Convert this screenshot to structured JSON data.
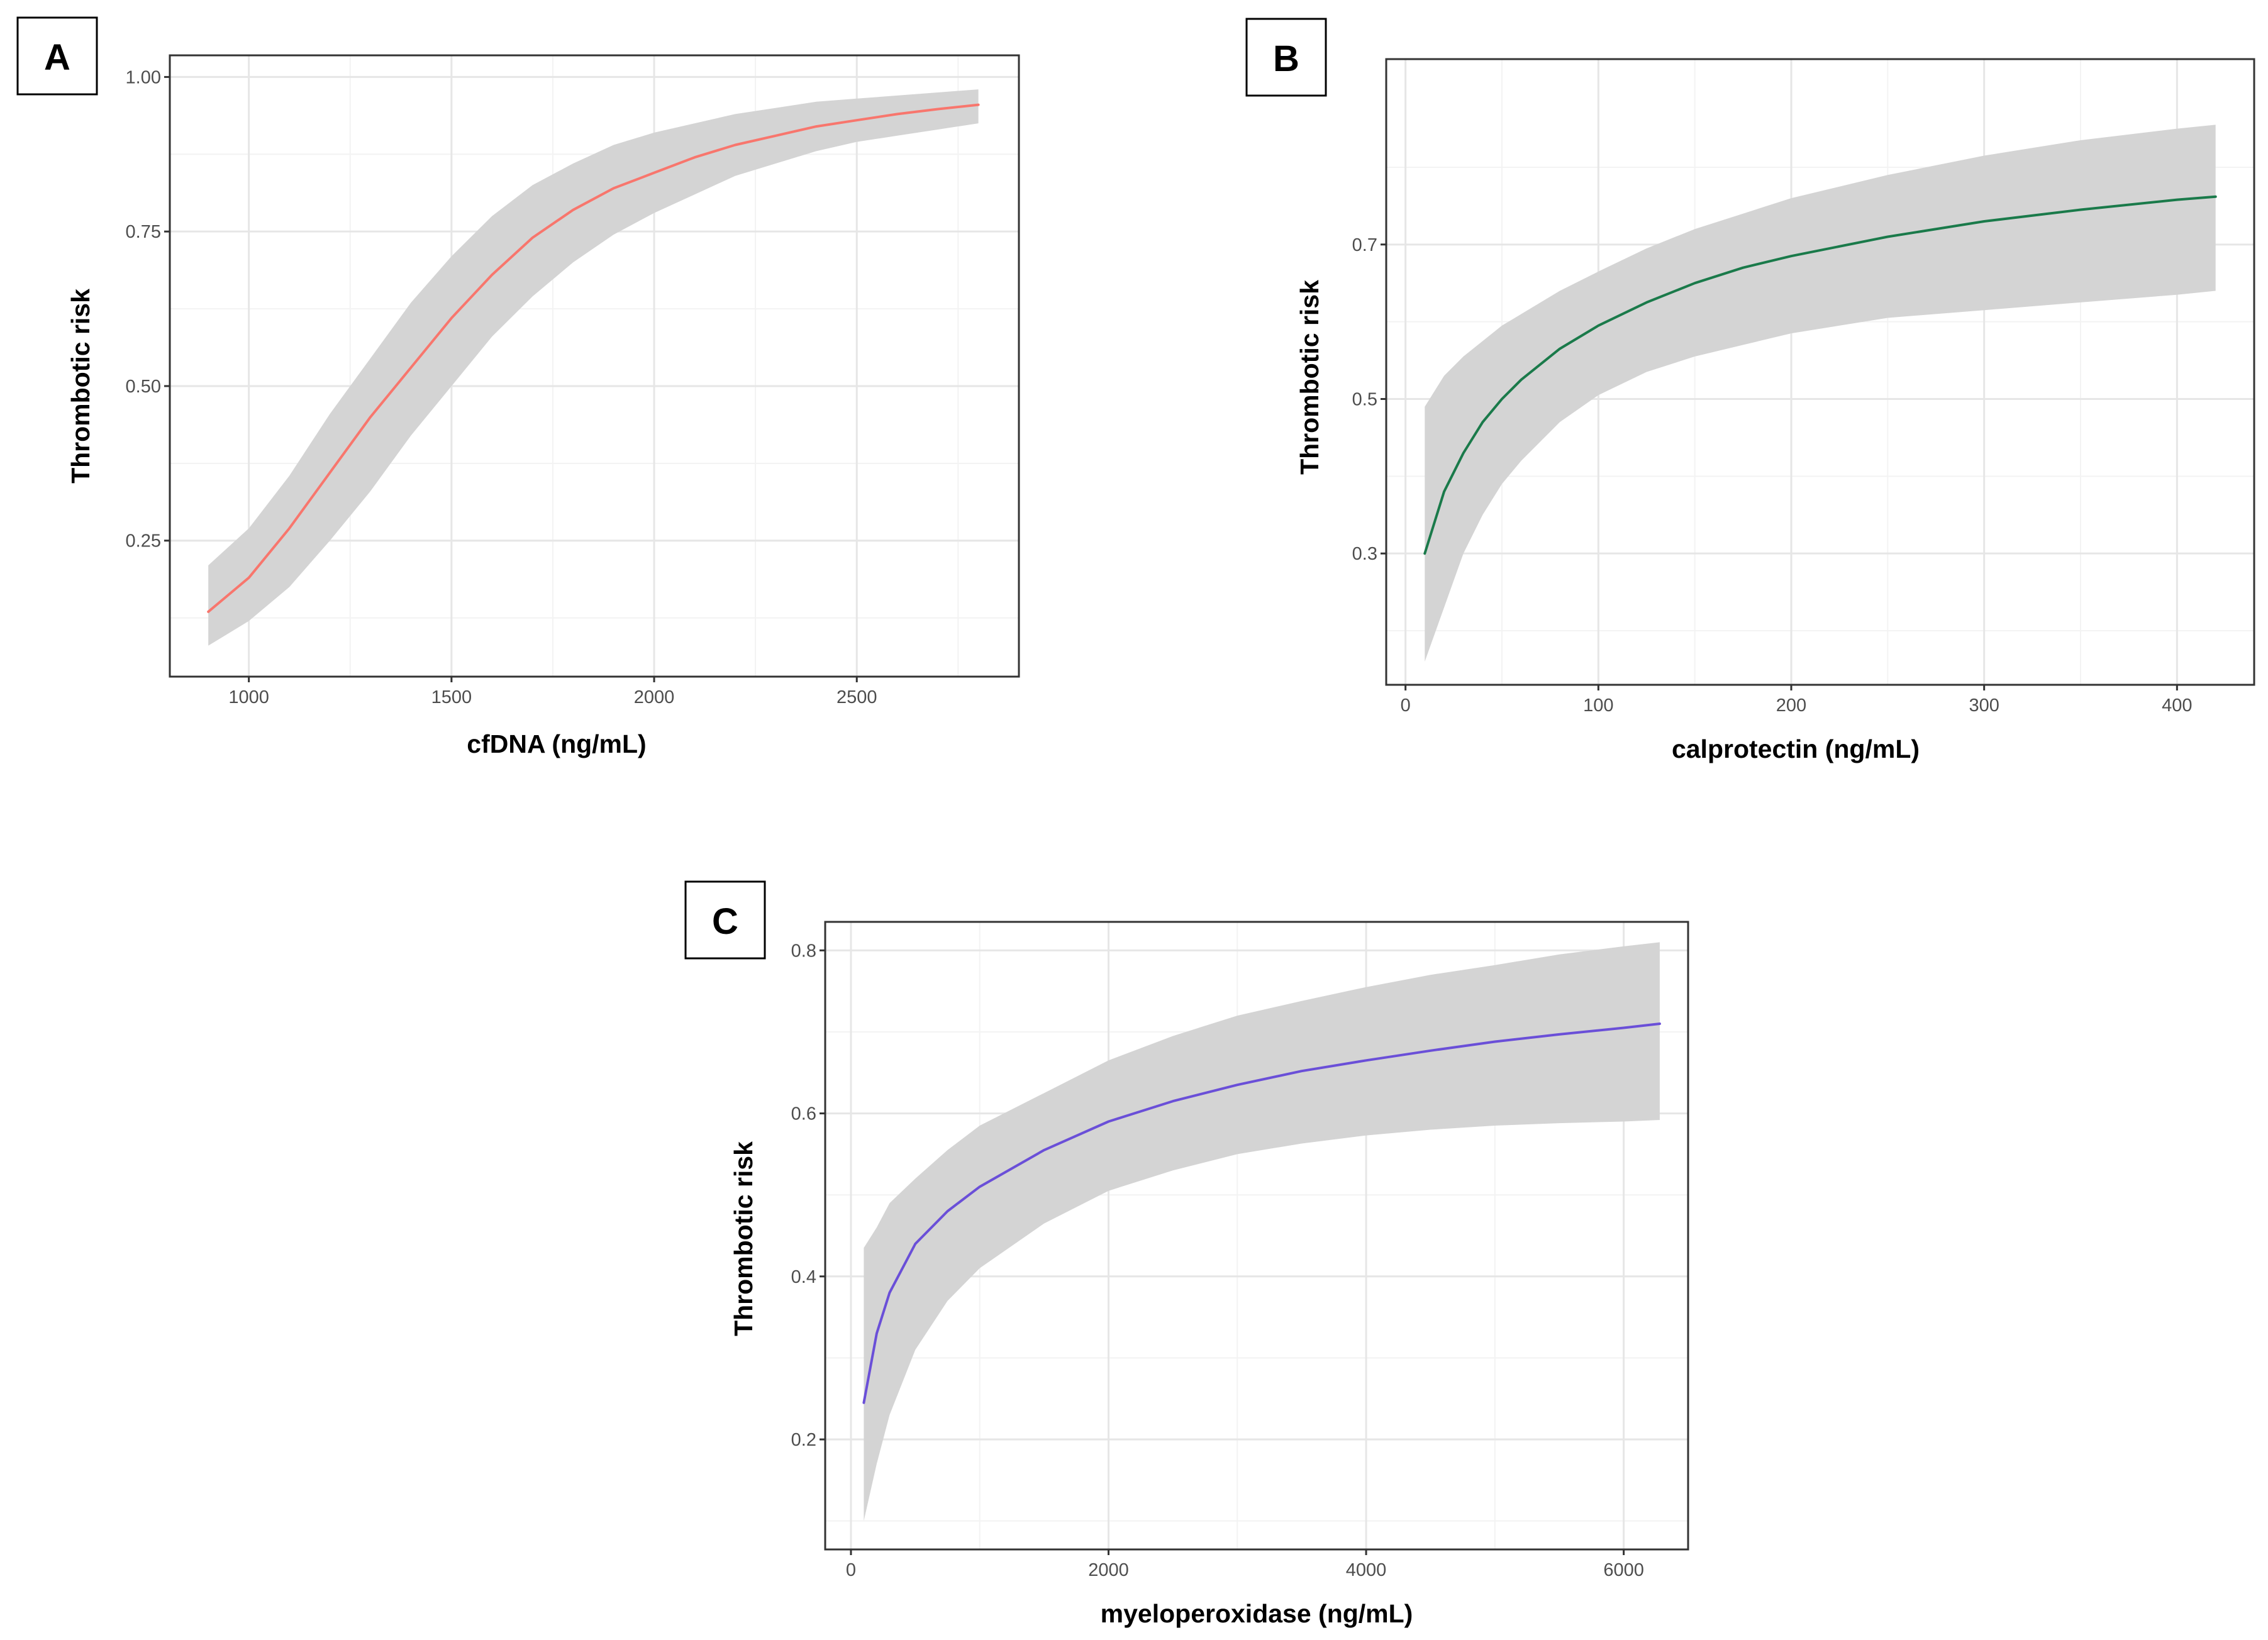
{
  "chart_data": [
    {
      "panel": "A",
      "type": "line",
      "title": "",
      "xlabel": "cfDNA  (ng/mL)",
      "ylabel": "Thrombotic risk",
      "xlim": [
        805,
        2900
      ],
      "ylim": [
        0.03,
        1.035
      ],
      "xticks": [
        1000,
        1500,
        2000,
        2500
      ],
      "xtick_labels": [
        "1000",
        "1500",
        "2000",
        "2500"
      ],
      "yticks": [
        0.25,
        0.5,
        0.75,
        1.0
      ],
      "ytick_labels": [
        "0.25",
        "0.50",
        "0.75",
        "1.00"
      ],
      "line_color": "#f8766d",
      "band_color": "#d4d4d4",
      "grid": true,
      "series": [
        {
          "name": "fit",
          "x": [
            900,
            1000,
            1100,
            1200,
            1300,
            1400,
            1500,
            1600,
            1700,
            1800,
            1900,
            2000,
            2100,
            2200,
            2300,
            2400,
            2500,
            2600,
            2700,
            2800
          ],
          "y": [
            0.135,
            0.19,
            0.27,
            0.36,
            0.45,
            0.53,
            0.61,
            0.68,
            0.74,
            0.785,
            0.82,
            0.845,
            0.87,
            0.89,
            0.905,
            0.92,
            0.93,
            0.94,
            0.948,
            0.955
          ],
          "lower": [
            0.08,
            0.12,
            0.175,
            0.25,
            0.33,
            0.42,
            0.5,
            0.58,
            0.645,
            0.7,
            0.745,
            0.78,
            0.81,
            0.84,
            0.86,
            0.88,
            0.895,
            0.905,
            0.915,
            0.925
          ],
          "upper": [
            0.21,
            0.27,
            0.355,
            0.455,
            0.545,
            0.635,
            0.71,
            0.775,
            0.825,
            0.86,
            0.89,
            0.91,
            0.925,
            0.94,
            0.95,
            0.96,
            0.965,
            0.97,
            0.975,
            0.98
          ]
        }
      ]
    },
    {
      "panel": "B",
      "type": "line",
      "title": "",
      "xlabel": "calprotectin  (ng/mL)",
      "ylabel": "Thrombotic risk",
      "xlim": [
        -10,
        440
      ],
      "ylim": [
        0.13,
        0.94
      ],
      "xticks": [
        0,
        100,
        200,
        300,
        400
      ],
      "xtick_labels": [
        "0",
        "100",
        "200",
        "300",
        "400"
      ],
      "yticks": [
        0.3,
        0.5,
        0.7
      ],
      "ytick_labels": [
        "0.3",
        "0.5",
        "0.7"
      ],
      "line_color": "#1a7a4a",
      "band_color": "#d4d4d4",
      "grid": true,
      "series": [
        {
          "name": "fit",
          "x": [
            10,
            20,
            30,
            40,
            50,
            60,
            80,
            100,
            125,
            150,
            175,
            200,
            250,
            300,
            350,
            400,
            420
          ],
          "y": [
            0.3,
            0.38,
            0.43,
            0.47,
            0.5,
            0.525,
            0.565,
            0.595,
            0.625,
            0.65,
            0.67,
            0.685,
            0.71,
            0.73,
            0.745,
            0.758,
            0.762
          ],
          "lower": [
            0.16,
            0.23,
            0.3,
            0.35,
            0.39,
            0.42,
            0.47,
            0.505,
            0.535,
            0.555,
            0.57,
            0.585,
            0.605,
            0.615,
            0.625,
            0.635,
            0.64
          ],
          "upper": [
            0.49,
            0.53,
            0.555,
            0.575,
            0.595,
            0.61,
            0.64,
            0.665,
            0.695,
            0.72,
            0.74,
            0.76,
            0.79,
            0.815,
            0.835,
            0.85,
            0.855
          ]
        }
      ]
    },
    {
      "panel": "C",
      "type": "line",
      "title": "",
      "xlabel": "myeloperoxidase (ng/mL)",
      "ylabel": "Thrombotic risk",
      "xlim": [
        -200,
        6500
      ],
      "ylim": [
        0.065,
        0.835
      ],
      "xticks": [
        0,
        2000,
        4000,
        6000
      ],
      "xtick_labels": [
        "0",
        "2000",
        "4000",
        "6000"
      ],
      "yticks": [
        0.2,
        0.4,
        0.6,
        0.8
      ],
      "ytick_labels": [
        "0.2",
        "0.4",
        "0.6",
        "0.8"
      ],
      "line_color": "#6a4fd8",
      "band_color": "#d4d4d4",
      "grid": true,
      "series": [
        {
          "name": "fit",
          "x": [
            100,
            200,
            300,
            500,
            750,
            1000,
            1500,
            2000,
            2500,
            3000,
            3500,
            4000,
            4500,
            5000,
            5500,
            6000,
            6280
          ],
          "y": [
            0.245,
            0.33,
            0.38,
            0.44,
            0.48,
            0.51,
            0.555,
            0.59,
            0.615,
            0.635,
            0.652,
            0.665,
            0.677,
            0.688,
            0.697,
            0.705,
            0.71
          ],
          "lower": [
            0.1,
            0.17,
            0.23,
            0.31,
            0.37,
            0.41,
            0.465,
            0.505,
            0.53,
            0.55,
            0.563,
            0.573,
            0.58,
            0.585,
            0.588,
            0.59,
            0.592
          ],
          "upper": [
            0.435,
            0.46,
            0.49,
            0.52,
            0.555,
            0.585,
            0.625,
            0.665,
            0.695,
            0.72,
            0.738,
            0.755,
            0.77,
            0.782,
            0.795,
            0.805,
            0.81
          ]
        }
      ]
    }
  ]
}
